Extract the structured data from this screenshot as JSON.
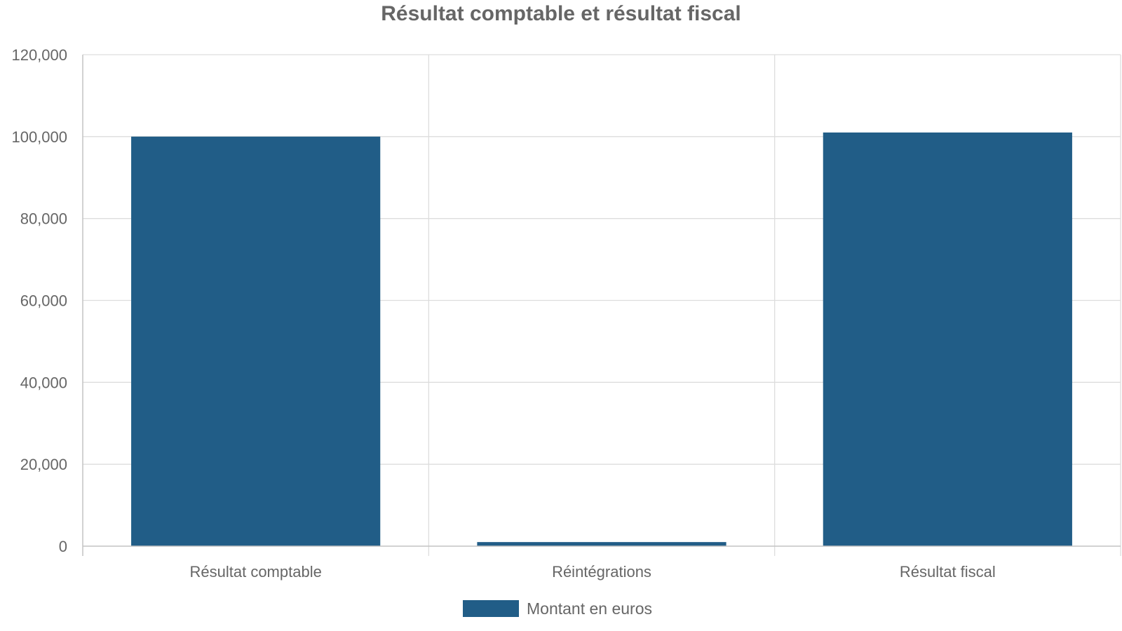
{
  "chart_data": {
    "type": "bar",
    "title": "Résultat comptable et résultat fiscal",
    "xlabel": "",
    "ylabel": "",
    "categories": [
      "Résultat comptable",
      "Réintégrations",
      "Résultat fiscal"
    ],
    "series": [
      {
        "name": "Montant en euros",
        "values": [
          100000,
          1000,
          101000
        ],
        "color": "#215d87"
      }
    ],
    "ylim": [
      0,
      120000
    ],
    "yticks": [
      "0",
      "20,000",
      "40,000",
      "60,000",
      "80,000",
      "100,000",
      "120,000"
    ],
    "ytick_values": [
      0,
      20000,
      40000,
      60000,
      80000,
      100000,
      120000
    ],
    "grid": true,
    "legend_position": "bottom"
  },
  "colors": {
    "bar": "#215d87",
    "text": "#666666",
    "grid": "#dddddd"
  }
}
